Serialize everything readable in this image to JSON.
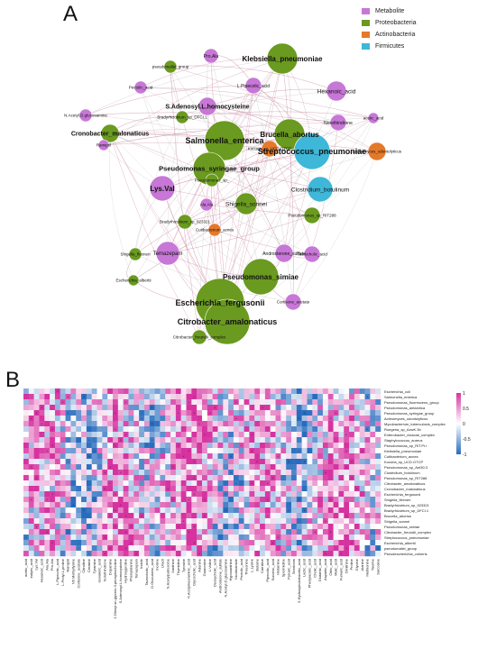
{
  "panels": {
    "a": "A",
    "b": "B"
  },
  "legend": [
    {
      "label": "Metabolite",
      "color": "#c777d6"
    },
    {
      "label": "Proteobacteria",
      "color": "#6a9a1f"
    },
    {
      "label": "Actinobacteria",
      "color": "#e5792a"
    },
    {
      "label": "Firmicutes",
      "color": "#3eb7d8"
    }
  ],
  "network": {
    "nodes": [
      {
        "label": "Klebsiella_pneumoniae",
        "group": "Proteobacteria"
      },
      {
        "label": "Pro.Ala",
        "group": "Metabolite"
      },
      {
        "label": "pseudomallei_group",
        "group": "Proteobacteria"
      },
      {
        "label": "Pectolic_acid",
        "group": "Metabolite"
      },
      {
        "label": "L.Pipecolic_acid",
        "group": "Metabolite"
      },
      {
        "label": "Hexanoic_acid",
        "group": "Metabolite"
      },
      {
        "label": "acetic_acid",
        "group": "Metabolite"
      },
      {
        "label": "N.Acetyl.D.glucosamine",
        "group": "Metabolite"
      },
      {
        "label": "S.Adenosyl.L.homocysteine",
        "group": "Metabolite"
      },
      {
        "label": "Bradyrhizobium_sp_DFCI.1",
        "group": "Proteobacteria"
      },
      {
        "label": "Norethindrone",
        "group": "Metabolite"
      },
      {
        "label": "Brucella_abortus",
        "group": "Proteobacteria"
      },
      {
        "label": "Cronobacter_malonaticus",
        "group": "Proteobacteria"
      },
      {
        "label": "Ramipril",
        "group": "Metabolite"
      },
      {
        "label": "Salmonella_enterica",
        "group": "Proteobacteria"
      },
      {
        "label": "Actinomyces_odontolyticus",
        "group": "Actinobacteria"
      },
      {
        "label": "Kocuria_sp_UCD.OTCP",
        "group": "Actinobacteria"
      },
      {
        "label": "Streptococcus_pneumoniae",
        "group": "Firmicutes"
      },
      {
        "label": "Pseudomonas_syringae_group",
        "group": "Proteobacteria"
      },
      {
        "label": "Pseudomonas_sp_",
        "group": "Proteobacteria"
      },
      {
        "label": "Lys.Val",
        "group": "Metabolite"
      },
      {
        "label": "Clostridium_botulinum",
        "group": "Firmicutes"
      },
      {
        "label": "Ala.Ala",
        "group": "Metabolite"
      },
      {
        "label": "Shigella_sonnei",
        "group": "Proteobacteria"
      },
      {
        "label": "Bradyrhizobium_sp_923321",
        "group": "Proteobacteria"
      },
      {
        "label": "Pseudomonas_sp_RIT288",
        "group": "Proteobacteria"
      },
      {
        "label": "Cutibacterium_acnes",
        "group": "Actinobacteria"
      },
      {
        "label": "Shigella_flexneri",
        "group": "Proteobacteria"
      },
      {
        "label": "Temazepam",
        "group": "Metabolite"
      },
      {
        "label": "Taurocholic_acid",
        "group": "Metabolite"
      },
      {
        "label": "Escherichia_albertii",
        "group": "Proteobacteria"
      },
      {
        "label": "Pseudomonas_simiae",
        "group": "Proteobacteria"
      },
      {
        "label": "Androsterone_sulfate",
        "group": "Metabolite"
      },
      {
        "label": "Escherichia_fergusonii",
        "group": "Proteobacteria"
      },
      {
        "label": "Cortisone_acetate",
        "group": "Metabolite"
      },
      {
        "label": "Citrobacter_amalonaticus",
        "group": "Proteobacteria"
      },
      {
        "label": "Citrobacter_freundii_complex",
        "group": "Proteobacteria"
      }
    ]
  },
  "heatmap": {
    "scale": {
      "max": "1",
      "mid": "0.5",
      "zero": "0",
      "neg_mid": "-0.5",
      "min": "-1"
    },
    "rows": [
      "Escherichia_coli",
      "Salmonella_enterica",
      "Pseudomonas_fluorescens_group",
      "Pseudomonas_antarctica",
      "Pseudomonas_syringae_group",
      "Actinomyces_odontolyticus",
      "Mycobacterium_tuberculosis_complex",
      "Ruegeria_sp_AzwK.3b",
      "Enterobacter_cloacae_complex",
      "Staphylococcus_aureus",
      "Pseudomonas_sp_RIT.PI.r",
      "Klebsiella_pneumoniae",
      "Cutibacterium_acnes",
      "Kocuria_sp_UCD.OTCP",
      "Pseudomonas_sp_Ant30.3",
      "Clostridium_botulinum",
      "Pseudomonas_sp_RIT288",
      "Citrobacter_amalonaticus",
      "Cronobacter_malonaticus",
      "Escherichia_fergusonii",
      "Shigella_flexneri",
      "Bradyrhizobium_sp_923321",
      "Bradyrhizobium_sp_DFCI.1",
      "Brucella_abortus",
      "Shigella_sonnei",
      "Pseudomonas_simiae",
      "Citrobacter_freundii_complex",
      "Streptococcus_pneumoniae",
      "Escherichia_albertii",
      "pseudomallei_group",
      "Pseudescherichia_vulneris"
    ],
    "columns": [
      "acetic_acid",
      "butyric_acid",
      "Lys.Val",
      "Hexanoic_acid",
      "Ala.Ala",
      "Pro.Ala",
      "L.Pipecolic_acid",
      "L.Prolyl.L.proline",
      "Ramipril",
      "N6.Methyllysine",
      "Cortisone_acetate",
      "Citrulline",
      "Creatine",
      "Tyramine",
      "Isovaleric_acid",
      "Norethindrone",
      "Dopamine",
      "1.Oleoyl.sn.glycero.3.phosphocholine",
      "S.Adenosyl.L.homocysteine",
      "Hydroxyproline",
      "Phenylalanine",
      "Temazepam",
      "Indole",
      "Taurocholic_acid",
      "D.Glucuronic_acid",
      "Inosine",
      "Uracil",
      "N.Acetylputrescine",
      "Xanthine",
      "Thymidine",
      "Tyrosine",
      "N.Acetylneuraminic_acid",
      "Glycocholic_acid",
      "Adenine",
      "Guanosine",
      "L.Valine",
      "Deoxycholic_acid",
      "Androsterone_sulfate",
      "N.Acetyl.D.glucosamine",
      "Hypoxanthine",
      "Nicotinamide",
      "Pectolic_acid",
      "Threonine",
      "L.Lysine",
      "Betaine",
      "Carnitine",
      "Pipecolic_acid",
      "Succinic_acid",
      "Histamine",
      "Spermidine",
      "Pyruvic_acid",
      "Serotonin",
      "5.Hydroxyindoleacetic_acid",
      "Lactic_acid",
      "Phenylacetic_acid",
      "Cholic_acid",
      "Glutamic_acid",
      "Aspartic_acid",
      "Citric_acid",
      "Malic_acid",
      "Fumaric_acid",
      "Ornithine",
      "Proline",
      "Glycine",
      "Alanine",
      "Methionine",
      "Taurine",
      "Sarcosine"
    ]
  }
}
